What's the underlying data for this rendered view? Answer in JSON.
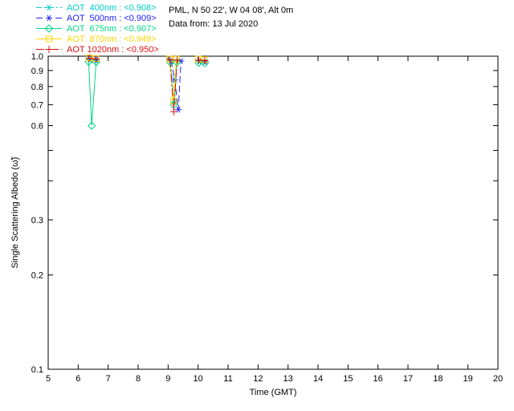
{
  "header": {
    "station_line": "PML, N 50 22', W 04 08', Alt 0m",
    "date_line": "Data from: 13 Jul 2020"
  },
  "legend": {
    "entries": [
      {
        "text": "AOT  400nm : <0.908>",
        "color": "#00cccc",
        "dash": "7 3 2 3",
        "marker": "asterisk"
      },
      {
        "text": "AOT  500nm : <0.909>",
        "color": "#2020ff",
        "dash": "8 4",
        "marker": "asterisk"
      },
      {
        "text": "AOT  675nm : <0.907>",
        "color": "#00d884",
        "dash": "",
        "marker": "diamond"
      },
      {
        "text": "AOT  870nm : <0.949>",
        "color": "#ffd400",
        "dash": "",
        "marker": "square"
      },
      {
        "text": "AOT 1020nm : <0.950>",
        "color": "#dd1111",
        "dash": "10 3 2 3",
        "marker": "plus"
      }
    ]
  },
  "chart_data": {
    "type": "line",
    "title": "",
    "xlabel": "Time (GMT)",
    "ylabel": "Single Scattering Albedo (ω̃)",
    "xscale": "linear",
    "yscale": "log",
    "xlim": [
      5,
      20
    ],
    "ylim": [
      0.1,
      1.0
    ],
    "grid": false,
    "legend_position": "top-left",
    "xticks": [
      {
        "value": 5,
        "label": "5"
      },
      {
        "value": 6,
        "label": "6"
      },
      {
        "value": 7,
        "label": "7"
      },
      {
        "value": 8,
        "label": "8"
      },
      {
        "value": 9,
        "label": "9"
      },
      {
        "value": 10,
        "label": "10"
      },
      {
        "value": 11,
        "label": "11"
      },
      {
        "value": 12,
        "label": "12"
      },
      {
        "value": 13,
        "label": "13"
      },
      {
        "value": 14,
        "label": "14"
      },
      {
        "value": 15,
        "label": "15"
      },
      {
        "value": 16,
        "label": "16"
      },
      {
        "value": 17,
        "label": "17"
      },
      {
        "value": 18,
        "label": "18"
      },
      {
        "value": 19,
        "label": "19"
      },
      {
        "value": 20,
        "label": "20"
      }
    ],
    "yticks": [
      {
        "value": 1.0,
        "label": "1.0"
      },
      {
        "value": 0.9,
        "label": "0.9"
      },
      {
        "value": 0.8,
        "label": "0.8"
      },
      {
        "value": 0.7,
        "label": "0.7"
      },
      {
        "value": 0.6,
        "label": "0.6"
      },
      {
        "value": 0.5,
        "label": ""
      },
      {
        "value": 0.4,
        "label": ""
      },
      {
        "value": 0.3,
        "label": "0.3"
      },
      {
        "value": 0.2,
        "label": "0.2"
      },
      {
        "value": 0.1,
        "label": "0.1"
      }
    ],
    "series": [
      {
        "name": "AOT 400nm",
        "color": "#00cccc",
        "dash": "7 3 2 3",
        "marker": "asterisk",
        "segments": [
          [
            [
              6.38,
              0.975
            ],
            [
              6.6,
              0.97
            ]
          ],
          [
            [
              9.08,
              0.965
            ],
            [
              9.2,
              0.715
            ],
            [
              9.3,
              0.96
            ]
          ],
          [
            [
              10.03,
              0.962
            ],
            [
              10.23,
              0.957
            ]
          ]
        ]
      },
      {
        "name": "AOT 500nm",
        "color": "#2020ff",
        "dash": "8 4",
        "marker": "asterisk",
        "segments": [
          [
            [
              6.39,
              0.98
            ],
            [
              6.61,
              0.975
            ]
          ],
          [
            [
              9.1,
              0.97
            ],
            [
              9.22,
              0.84
            ],
            [
              9.34,
              0.675
            ],
            [
              9.43,
              0.965
            ]
          ],
          [
            [
              10.04,
              0.966
            ],
            [
              10.24,
              0.96
            ]
          ]
        ]
      },
      {
        "name": "AOT 675nm",
        "color": "#00d884",
        "dash": "",
        "marker": "diamond",
        "segments": [
          [
            [
              6.35,
              0.96
            ],
            [
              6.45,
              0.6
            ],
            [
              6.6,
              0.958
            ]
          ],
          [
            [
              9.07,
              0.955
            ],
            [
              9.19,
              0.7
            ],
            [
              9.29,
              0.955
            ]
          ],
          [
            [
              10.02,
              0.953
            ],
            [
              10.22,
              0.95
            ]
          ]
        ]
      },
      {
        "name": "AOT 870nm",
        "color": "#ffd400",
        "dash": "",
        "marker": "square",
        "segments": [
          [
            [
              6.36,
              0.988
            ],
            [
              6.59,
              0.982
            ]
          ],
          [
            [
              9.05,
              0.98
            ],
            [
              9.18,
              0.72
            ],
            [
              9.28,
              0.978
            ]
          ],
          [
            [
              10.01,
              0.979
            ],
            [
              10.21,
              0.975
            ]
          ]
        ]
      },
      {
        "name": "AOT 1020nm",
        "color": "#dd1111",
        "dash": "10 3 2 3",
        "marker": "plus",
        "segments": [
          [
            [
              6.37,
              0.984
            ],
            [
              6.6,
              0.979
            ]
          ],
          [
            [
              9.06,
              0.975
            ],
            [
              9.19,
              0.665
            ],
            [
              9.3,
              0.972
            ]
          ],
          [
            [
              10.02,
              0.972
            ],
            [
              10.22,
              0.968
            ]
          ]
        ]
      }
    ]
  }
}
